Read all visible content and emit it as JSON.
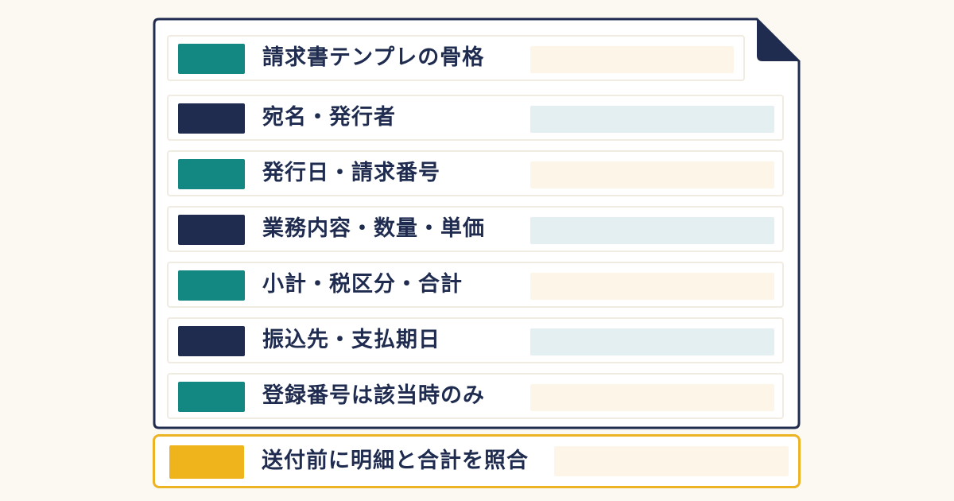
{
  "colors": {
    "background": "#fcf9f2",
    "sheet_border": "#1f2c4f",
    "teal": "#138781",
    "navy": "#1f2c4f",
    "gold": "#efb31b",
    "field_cream": "#fdf5e8",
    "field_mint": "#e3eff0",
    "text": "#1f2c4f"
  },
  "template": {
    "rows": [
      {
        "label": "請求書テンプレの骨格",
        "swatch": "teal",
        "field": "cream"
      },
      {
        "label": "宛名・発行者",
        "swatch": "navy",
        "field": "mint"
      },
      {
        "label": "発行日・請求番号",
        "swatch": "teal",
        "field": "cream"
      },
      {
        "label": "業務内容・数量・単価",
        "swatch": "navy",
        "field": "mint"
      },
      {
        "label": "小計・税区分・合計",
        "swatch": "teal",
        "field": "cream"
      },
      {
        "label": "振込先・支払期日",
        "swatch": "navy",
        "field": "mint"
      },
      {
        "label": "登録番号は該当時のみ",
        "swatch": "teal",
        "field": "cream"
      }
    ]
  },
  "checklist": {
    "label": "送付前に明細と合計を照合",
    "swatch": "gold",
    "field": "cream"
  }
}
